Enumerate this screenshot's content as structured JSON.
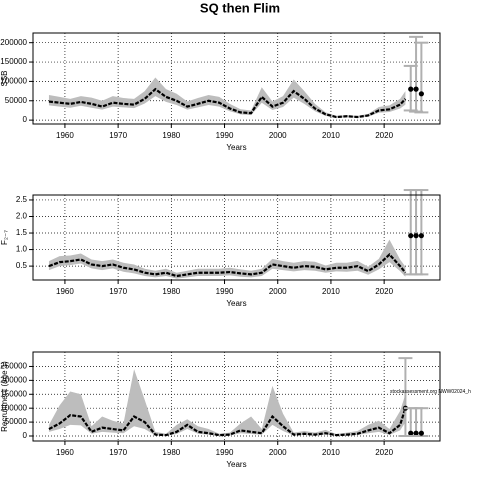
{
  "chart_data": [
    {
      "type": "line",
      "title": "SQ then Flim",
      "xlabel": "Years",
      "ylabel": "SSB",
      "xlim": [
        1954,
        2030.5
      ],
      "xticks": [
        1960,
        1970,
        1980,
        1990,
        2000,
        2010,
        2020
      ],
      "ylim": [
        -10000,
        225000
      ],
      "yticks": [
        0,
        50000,
        100000,
        150000,
        200000
      ],
      "grid": true,
      "x": [
        1957,
        1959,
        1961,
        1963,
        1965,
        1967,
        1969,
        1971,
        1973,
        1975,
        1977,
        1979,
        1981,
        1983,
        1985,
        1987,
        1989,
        1991,
        1993,
        1995,
        1997,
        1999,
        2001,
        2003,
        2005,
        2007,
        2009,
        2011,
        2013,
        2015,
        2017,
        2019,
        2021,
        2023,
        2024
      ],
      "series": [
        {
          "color": "#000000",
          "band_color": "#bdbdbd",
          "values": [
            48000,
            45000,
            42000,
            47000,
            42000,
            35000,
            45000,
            42000,
            40000,
            55000,
            80000,
            60000,
            50000,
            35000,
            42000,
            50000,
            45000,
            30000,
            20000,
            18000,
            60000,
            35000,
            45000,
            75000,
            55000,
            30000,
            15000,
            8000,
            10000,
            8000,
            12000,
            25000,
            28000,
            40000,
            55000
          ],
          "lower": [
            38000,
            35000,
            32000,
            37000,
            32000,
            27000,
            35000,
            33000,
            31000,
            43000,
            62000,
            47000,
            39000,
            27000,
            33000,
            39000,
            35000,
            23000,
            15000,
            13000,
            45000,
            26000,
            34000,
            58000,
            42000,
            23000,
            11000,
            6000,
            7000,
            6000,
            9000,
            19000,
            21000,
            30000,
            40000
          ],
          "upper": [
            65000,
            60000,
            55000,
            62000,
            58000,
            50000,
            62000,
            57000,
            55000,
            75000,
            110000,
            80000,
            68000,
            48000,
            57000,
            65000,
            60000,
            42000,
            28000,
            25000,
            85000,
            48000,
            62000,
            105000,
            75000,
            42000,
            20000,
            11000,
            13000,
            11000,
            16000,
            34000,
            38000,
            55000,
            75000
          ]
        }
      ],
      "forecast": {
        "color": "#b0b0b0",
        "x": [
          2025,
          2026,
          2027
        ],
        "values": [
          80000,
          80000,
          68000
        ],
        "lower": [
          25000,
          22000,
          20000
        ],
        "upper": [
          140000,
          215000,
          200000
        ]
      }
    },
    {
      "type": "line",
      "xlabel": "Years",
      "ylabel": "F₂₋₇",
      "xlim": [
        1954,
        2030.5
      ],
      "xticks": [
        1960,
        1970,
        1980,
        1990,
        2000,
        2010,
        2020
      ],
      "ylim": [
        0.08,
        2.65
      ],
      "yticks": [
        0.5,
        {
          "value": 1,
          "label": "1.0"
        },
        1.5,
        {
          "value": 2,
          "label": "2.0"
        },
        2.5
      ],
      "grid": true,
      "x": [
        1957,
        1959,
        1961,
        1963,
        1965,
        1967,
        1969,
        1971,
        1973,
        1975,
        1977,
        1979,
        1981,
        1983,
        1985,
        1987,
        1989,
        1991,
        1993,
        1995,
        1997,
        1999,
        2001,
        2003,
        2005,
        2007,
        2009,
        2011,
        2013,
        2015,
        2017,
        2019,
        2021,
        2023,
        2024
      ],
      "series": [
        {
          "color": "#000000",
          "band_color": "#bdbdbd",
          "values": [
            0.5,
            0.62,
            0.65,
            0.7,
            0.55,
            0.5,
            0.55,
            0.45,
            0.4,
            0.3,
            0.25,
            0.3,
            0.2,
            0.25,
            0.3,
            0.3,
            0.3,
            0.32,
            0.28,
            0.25,
            0.3,
            0.55,
            0.5,
            0.45,
            0.5,
            0.48,
            0.4,
            0.45,
            0.45,
            0.5,
            0.35,
            0.55,
            0.85,
            0.5,
            0.3
          ],
          "lower": [
            0.38,
            0.5,
            0.53,
            0.58,
            0.43,
            0.38,
            0.43,
            0.33,
            0.28,
            0.2,
            0.16,
            0.2,
            0.12,
            0.16,
            0.2,
            0.2,
            0.2,
            0.22,
            0.18,
            0.16,
            0.2,
            0.42,
            0.38,
            0.34,
            0.38,
            0.36,
            0.3,
            0.34,
            0.33,
            0.36,
            0.24,
            0.4,
            0.62,
            0.35,
            0.18
          ],
          "upper": [
            0.65,
            0.8,
            0.82,
            0.88,
            0.7,
            0.65,
            0.7,
            0.6,
            0.55,
            0.42,
            0.36,
            0.42,
            0.3,
            0.36,
            0.42,
            0.42,
            0.42,
            0.45,
            0.4,
            0.36,
            0.42,
            0.72,
            0.65,
            0.6,
            0.65,
            0.63,
            0.52,
            0.6,
            0.6,
            0.66,
            0.48,
            0.72,
            1.3,
            0.7,
            0.48
          ]
        }
      ],
      "forecast": {
        "color": "#b0b0b0",
        "x": [
          2025,
          2026,
          2027
        ],
        "values": [
          1.42,
          1.42,
          1.42
        ],
        "lower": [
          0.25,
          0.25,
          0.25
        ],
        "upper": [
          2.8,
          2.8,
          2.8
        ]
      }
    },
    {
      "type": "line",
      "xlabel": "Years",
      "ylabel": "Recruitment (age 1)",
      "annotation": "stockassessment.org NWW02024_h",
      "xlim": [
        1954,
        2030.5
      ],
      "xticks": [
        1960,
        1970,
        1980,
        1990,
        2000,
        2010,
        2020
      ],
      "ylim": [
        -18000,
        302000
      ],
      "yticks": [
        0,
        50000,
        100000,
        150000,
        200000,
        250000
      ],
      "grid": true,
      "x": [
        1957,
        1959,
        1961,
        1963,
        1965,
        1967,
        1969,
        1971,
        1973,
        1975,
        1977,
        1979,
        1981,
        1983,
        1985,
        1987,
        1989,
        1991,
        1993,
        1995,
        1997,
        1999,
        2001,
        2003,
        2005,
        2007,
        2009,
        2011,
        2013,
        2015,
        2017,
        2019,
        2021,
        2023,
        2024
      ],
      "series": [
        {
          "color": "#000000",
          "band_color": "#bdbdbd",
          "values": [
            25000,
            45000,
            75000,
            70000,
            15000,
            30000,
            25000,
            20000,
            70000,
            50000,
            5000,
            3000,
            15000,
            40000,
            15000,
            10000,
            3000,
            5000,
            20000,
            15000,
            10000,
            70000,
            35000,
            5000,
            8000,
            5000,
            10000,
            3000,
            5000,
            8000,
            20000,
            30000,
            10000,
            40000,
            100000
          ],
          "lower": [
            15000,
            25000,
            40000,
            38000,
            8000,
            15000,
            12000,
            10000,
            35000,
            25000,
            2000,
            1000,
            7000,
            25000,
            8000,
            5000,
            1000,
            2000,
            10000,
            7000,
            5000,
            40000,
            18000,
            2000,
            4000,
            2000,
            5000,
            1000,
            2000,
            4000,
            10000,
            15000,
            4000,
            20000,
            50000
          ],
          "upper": [
            40000,
            110000,
            160000,
            150000,
            35000,
            70000,
            55000,
            45000,
            240000,
            130000,
            15000,
            8000,
            40000,
            60000,
            35000,
            25000,
            8000,
            12000,
            45000,
            70000,
            25000,
            180000,
            80000,
            12000,
            18000,
            12000,
            22000,
            7000,
            12000,
            18000,
            40000,
            55000,
            25000,
            90000,
            150000
          ]
        }
      ],
      "forecast": {
        "color": "#b0b0b0",
        "x": [
          2024,
          2025,
          2026,
          2027
        ],
        "values": [
          100000,
          10000,
          10000,
          10000
        ],
        "lower": [
          0,
          0,
          0,
          0
        ],
        "upper": [
          280000,
          100000,
          100000,
          100000
        ]
      }
    }
  ]
}
